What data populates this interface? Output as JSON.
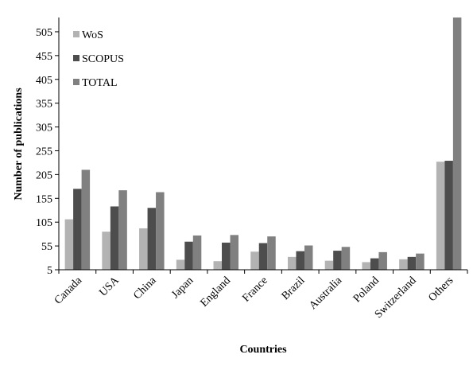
{
  "chart_data": {
    "type": "bar",
    "categories": [
      "Canada",
      "USA",
      "China",
      "Japan",
      "England",
      "France",
      "Brazil",
      "Australia",
      "Poland",
      "Switzerland",
      "Others"
    ],
    "series": [
      {
        "name": "WoS",
        "color": "#b3b3b3",
        "values": [
          111,
          85,
          92,
          26,
          23,
          43,
          32,
          24,
          21,
          27,
          232
        ]
      },
      {
        "name": "SCOPUS",
        "color": "#4d4d4d",
        "values": [
          175,
          138,
          135,
          64,
          62,
          61,
          44,
          45,
          29,
          32,
          234
        ]
      },
      {
        "name": "TOTAL",
        "color": "#808080",
        "values": [
          215,
          172,
          168,
          77,
          78,
          75,
          56,
          53,
          42,
          39,
          540
        ]
      }
    ],
    "xlabel": "Countries",
    "ylabel": "Number of publications",
    "ylim": [
      5,
      535
    ],
    "yticks": [
      5,
      55,
      105,
      155,
      205,
      255,
      305,
      355,
      405,
      455,
      505
    ],
    "legend": "top-left",
    "grid": false
  }
}
